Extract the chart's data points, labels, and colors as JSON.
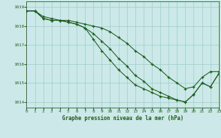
{
  "title": "Graphe pression niveau de la mer (hPa)",
  "background_color": "#cce8e8",
  "grid_color": "#99cccc",
  "line_color": "#1a5c1a",
  "marker_color": "#1a5c1a",
  "xlim": [
    0,
    23
  ],
  "ylim": [
    1013.7,
    1019.3
  ],
  "yticks": [
    1014,
    1015,
    1016,
    1017,
    1018,
    1019
  ],
  "xtick_labels": [
    "0",
    "1",
    "2",
    "3",
    "4",
    "5",
    "6",
    "7",
    "8",
    "9",
    "10",
    "11",
    "12",
    "13",
    "14",
    "15",
    "16",
    "17",
    "18",
    "19",
    "20",
    "21",
    "22",
    "23"
  ],
  "series1": [
    1018.8,
    1018.8,
    1018.5,
    1018.4,
    1018.3,
    1018.3,
    1018.2,
    1018.1,
    1018.0,
    1017.9,
    1017.7,
    1017.4,
    1017.1,
    1016.7,
    1016.4,
    1016.0,
    1015.7,
    1015.3,
    1015.0,
    1014.7,
    1014.8,
    1015.3,
    1015.6,
    1015.6
  ],
  "series2": [
    1018.8,
    1018.8,
    1018.4,
    1018.3,
    1018.3,
    1018.2,
    1018.1,
    1017.9,
    1017.6,
    1017.2,
    1016.8,
    1016.3,
    1015.9,
    1015.4,
    1015.1,
    1014.7,
    1014.5,
    1014.3,
    1014.1,
    1014.0,
    1014.4,
    1015.0,
    1014.8,
    1015.5
  ],
  "series3": [
    1018.8,
    1018.8,
    1018.4,
    1018.3,
    1018.3,
    1018.2,
    1018.1,
    1017.9,
    1017.3,
    1016.7,
    1016.2,
    1015.7,
    1015.3,
    1014.9,
    1014.7,
    1014.5,
    1014.3,
    1014.2,
    1014.1,
    1014.0,
    1014.4,
    1015.0,
    1014.8,
    1015.5
  ]
}
